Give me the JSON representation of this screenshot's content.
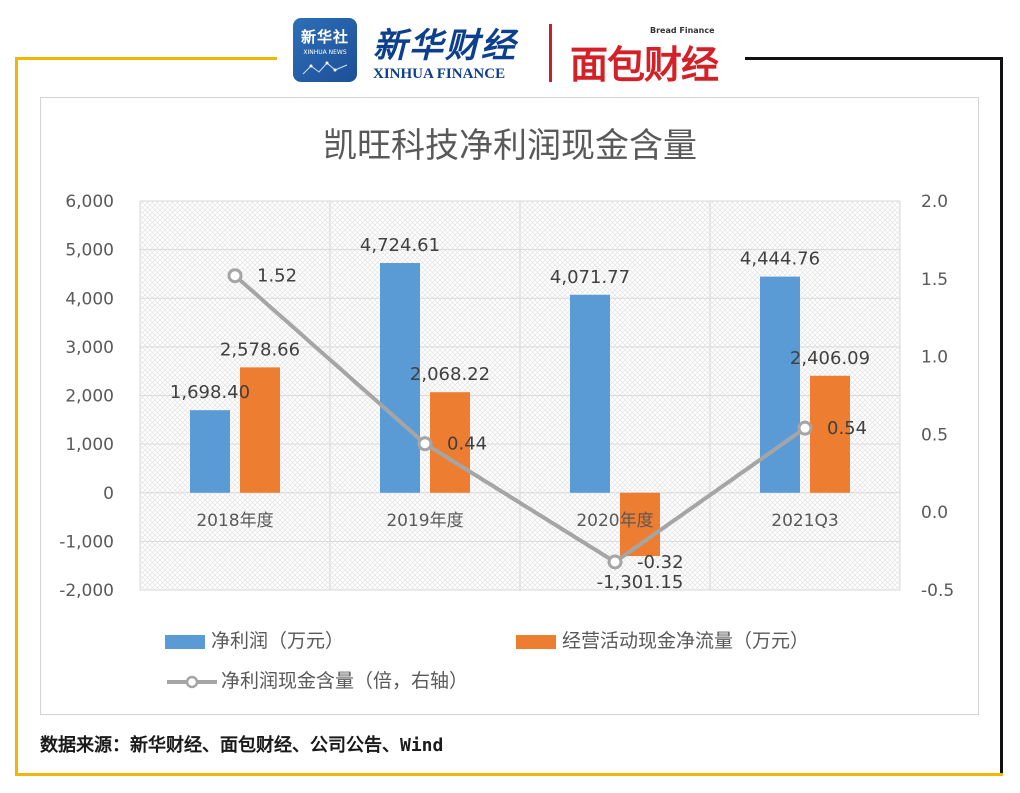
{
  "logos": {
    "xinhua_badge_cn": "新华社",
    "xinhua_badge_en": "XINHUA NEWS",
    "xinhua_finance_cn": "新华财经",
    "xinhua_finance_en": "XINHUA FINANCE",
    "bread_finance_cn": "面包财经",
    "bread_finance_en": "Bread Finance"
  },
  "chart_data": {
    "type": "bar",
    "title": "凯旺科技净利润现金含量",
    "categories": [
      "2018年度",
      "2019年度",
      "2020年度",
      "2021Q3"
    ],
    "series": [
      {
        "name": "净利润（万元）",
        "kind": "bar",
        "axis": "left",
        "color": "#5b9bd5",
        "values": [
          1698.4,
          4724.61,
          4071.77,
          4444.76
        ],
        "labels": [
          "1,698.40",
          "4,724.61",
          "4,071.77",
          "4,444.76"
        ]
      },
      {
        "name": "经营活动现金净流量（万元）",
        "kind": "bar",
        "axis": "left",
        "color": "#ed7d31",
        "values": [
          2578.66,
          2068.22,
          -1301.15,
          2406.09
        ],
        "labels": [
          "2,578.66",
          "2,068.22",
          "-1,301.15",
          "2,406.09"
        ]
      },
      {
        "name": "净利润现金含量（倍，右轴）",
        "kind": "line",
        "axis": "right",
        "color": "#a5a5a5",
        "values": [
          1.52,
          0.44,
          -0.32,
          0.54
        ],
        "labels": [
          "1.52",
          "0.44",
          "-0.32",
          "0.54"
        ]
      }
    ],
    "y_left": {
      "min": -2000,
      "max": 6000,
      "step": 1000,
      "tick_labels": [
        "-2,000",
        "-1,000",
        "0",
        "1,000",
        "2,000",
        "3,000",
        "4,000",
        "5,000",
        "6,000"
      ]
    },
    "y_right": {
      "min": -0.5,
      "max": 2.0,
      "step": 0.5,
      "tick_labels": [
        "-0.5",
        "0.0",
        "0.5",
        "1.0",
        "1.5",
        "2.0"
      ]
    },
    "grid": true,
    "legend_position": "bottom"
  },
  "source_note": "数据来源：新华财经、面包财经、公司公告、Wind"
}
